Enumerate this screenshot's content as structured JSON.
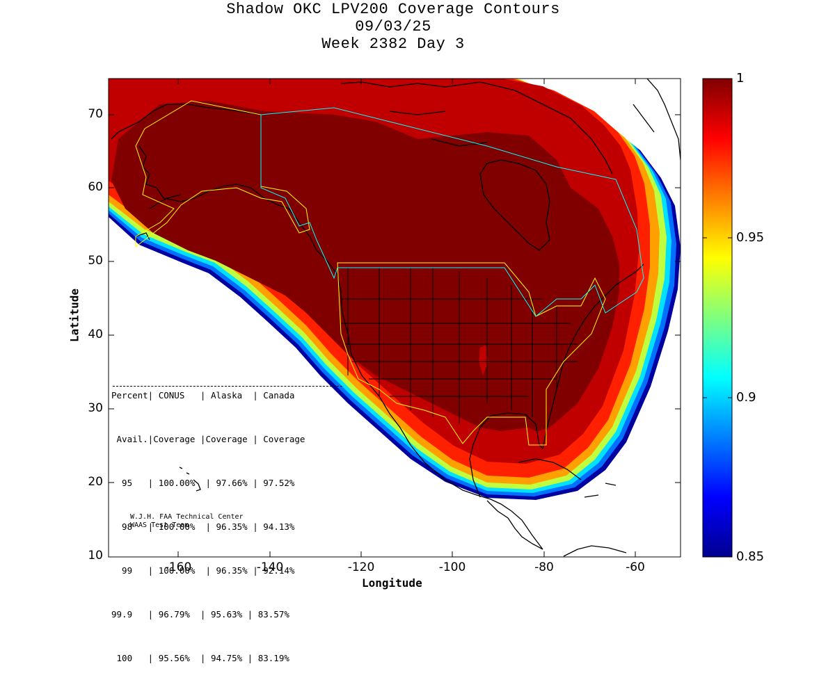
{
  "title": {
    "line1": "Shadow OKC LPV200 Coverage Contours",
    "line2": "09/03/25",
    "line3": "Week 2382 Day 3"
  },
  "axes": {
    "xlabel": "Longitude",
    "ylabel": "Latitude",
    "xticks": [
      "-160",
      "-140",
      "-120",
      "-100",
      "-80",
      "-60"
    ],
    "yticks": [
      "70",
      "60",
      "50",
      "40",
      "30",
      "20",
      "10"
    ],
    "xlim": [
      -175,
      -50
    ],
    "ylim": [
      10,
      75
    ]
  },
  "colorbar": {
    "labels": [
      "1",
      "0.95",
      "0.9",
      "0.85"
    ],
    "min": 0.85,
    "max": 1.0,
    "colormap": "jet"
  },
  "stats_table": {
    "header1": "Percent| CONUS   | Alaska  | Canada",
    "header2": " Avail.|Coverage |Coverage | Coverage",
    "rows": [
      "  95   | 100.00%  | 97.66% | 97.52%",
      "  98   | 100.00%  | 96.35% | 94.13%",
      "  99   | 100.00%  | 96.35% | 92.14%",
      "99.9   | 96.79%  | 95.63% | 83.57%",
      " 100   | 95.56%  | 94.75% | 83.19%"
    ]
  },
  "credit": {
    "line1": "W.J.H. FAA Technical Center",
    "line2": "WAAS Test Team"
  },
  "colors": {
    "full_coverage": "#800000",
    "conus_boundary": "#ffff00",
    "canada_boundary": "#00ffff",
    "coastline": "#000000"
  }
}
